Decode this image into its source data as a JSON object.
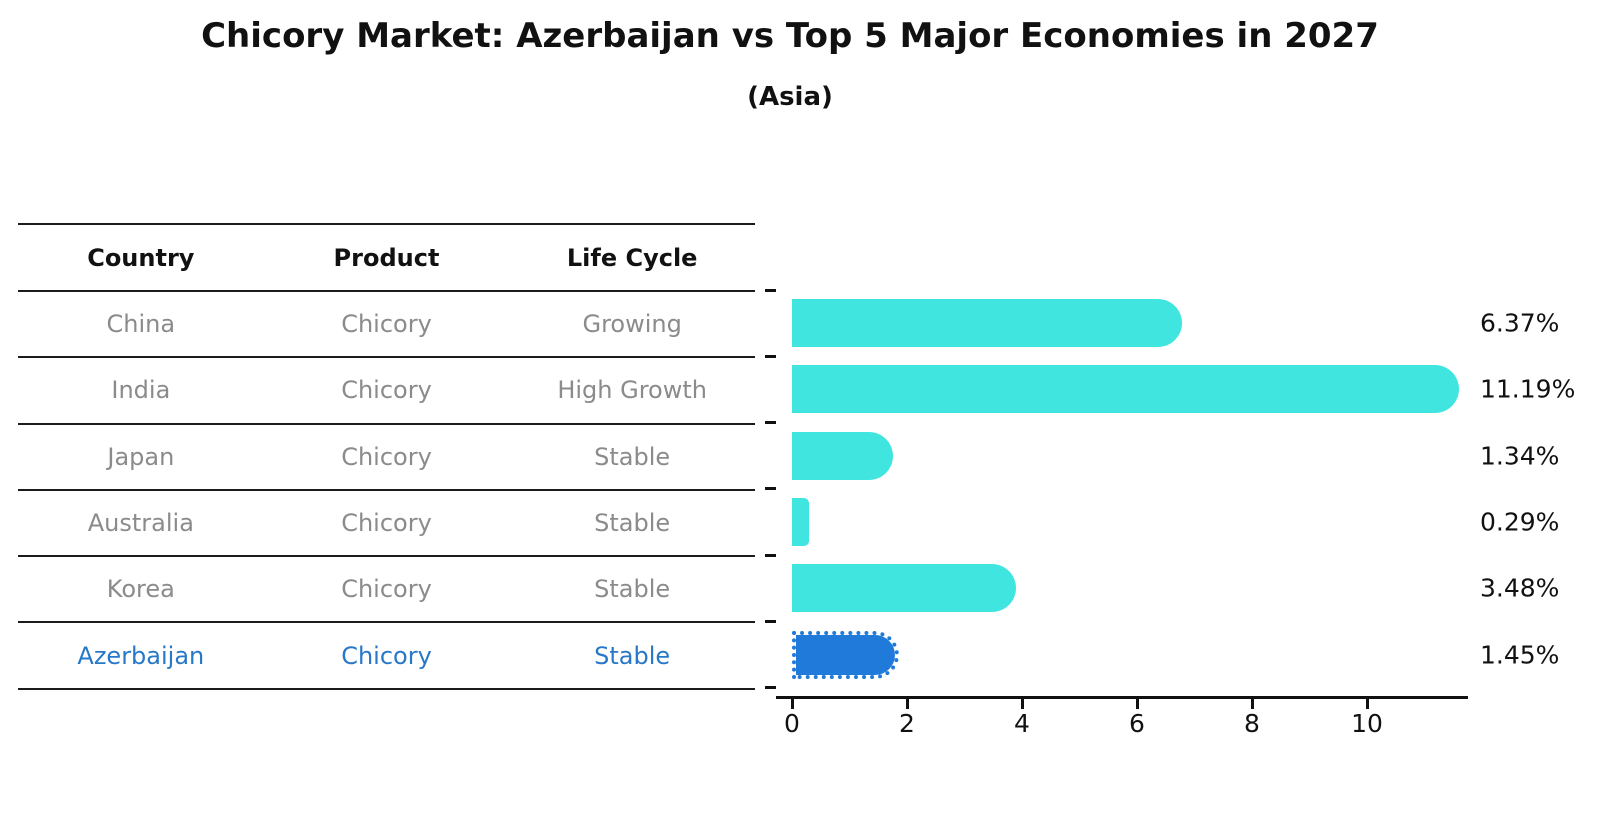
{
  "title": "Chicory Market: Azerbaijan vs Top 5 Major Economies in 2027",
  "subtitle": "(Asia)",
  "table": {
    "headers": [
      "Country",
      "Product",
      "Life Cycle"
    ],
    "rows": [
      {
        "country": "China",
        "product": "Chicory",
        "life_cycle": "Growing",
        "highlight": false
      },
      {
        "country": "India",
        "product": "Chicory",
        "life_cycle": "High Growth",
        "highlight": false
      },
      {
        "country": "Japan",
        "product": "Chicory",
        "life_cycle": "Stable",
        "highlight": false
      },
      {
        "country": "Australia",
        "product": "Chicory",
        "life_cycle": "Stable",
        "highlight": false
      },
      {
        "country": "Korea",
        "product": "Chicory",
        "life_cycle": "Stable",
        "highlight": false
      },
      {
        "country": "Azerbaijan",
        "product": "Chicory",
        "life_cycle": "Stable",
        "highlight": true
      }
    ]
  },
  "chart_data": {
    "type": "bar",
    "orientation": "horizontal",
    "title": "Chicory Market: Azerbaijan vs Top 5 Major Economies in 2027",
    "subtitle": "(Asia)",
    "categories": [
      "China",
      "India",
      "Japan",
      "Australia",
      "Korea",
      "Azerbaijan"
    ],
    "values": [
      6.37,
      11.19,
      1.34,
      0.29,
      3.48,
      1.45
    ],
    "labels": [
      "6.37%",
      "11.19%",
      "1.34%",
      "0.29%",
      "3.48%",
      "1.45%"
    ],
    "x_ticks": [
      "0",
      "2",
      "4",
      "6",
      "8",
      "10"
    ],
    "x_tick_values": [
      0,
      2,
      4,
      6,
      8,
      10
    ],
    "xlim": [
      0,
      11.76
    ],
    "grid": false,
    "legend": "none",
    "bar_color": "#40e5df",
    "highlight_color": "#1f7ad9",
    "highlight_index": 5
  },
  "colors": {
    "text_primary": "#111111",
    "text_muted": "#8b8b8b",
    "highlight_text": "#2878c8",
    "table_line": "#1c1c1c",
    "background": "#ffffff"
  }
}
